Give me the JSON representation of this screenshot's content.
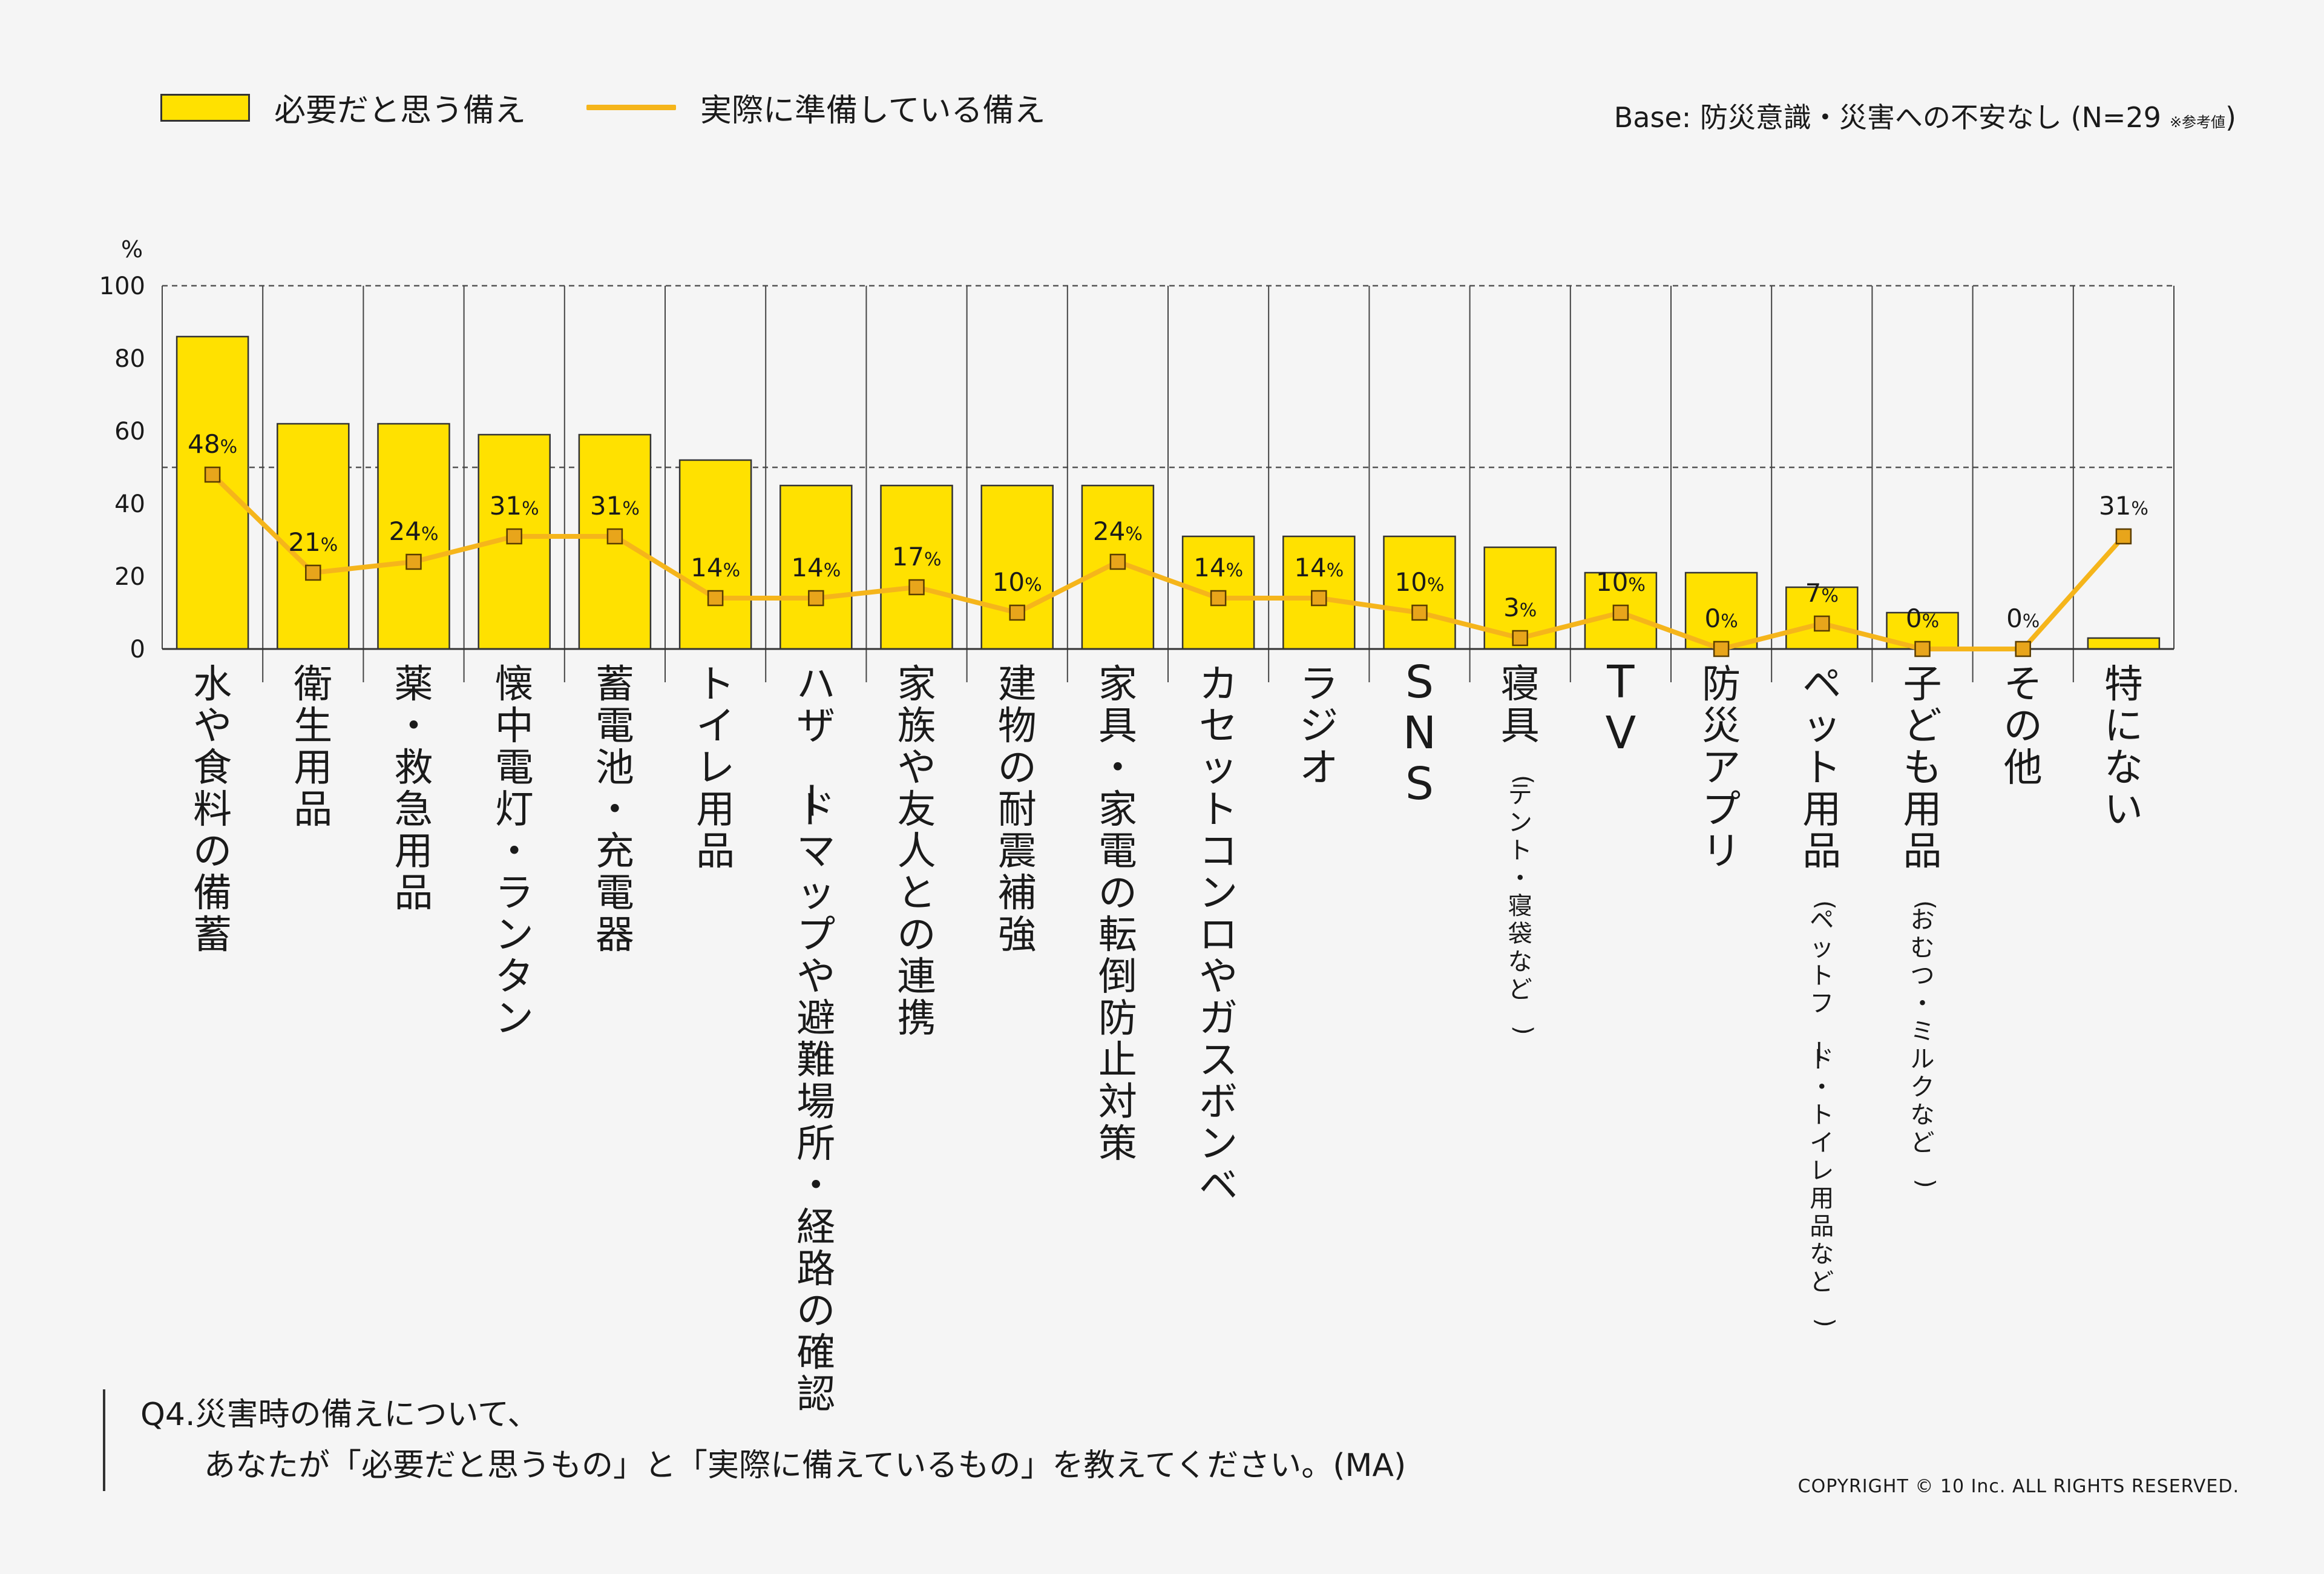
{
  "legend": {
    "bar_label": "必要だと思う備え",
    "line_label": "実際に準備している備え"
  },
  "base": {
    "text": "Base: 防災意識・災害への不安なし (N=29",
    "note": "※参考値",
    "close": ")"
  },
  "question": {
    "line1": "Q4.災害時の備えについて、",
    "line2": "あなたが「必要だと思うもの」と「実際に備えているもの」を教えてください。(MA)"
  },
  "copyright": "COPYRIGHT © 10 Inc. ALL RIGHTS RESERVED.",
  "colors": {
    "bar": "#ffe100",
    "bar_border": "#333333",
    "line": "#f5b51b",
    "marker": "#e8a51b",
    "grid": "#555555"
  },
  "chart_data": {
    "type": "bar",
    "yunit": "%",
    "ylim": [
      0,
      100
    ],
    "yticks": [
      0,
      20,
      40,
      60,
      80,
      100
    ],
    "reference_line": 50,
    "categories": [
      {
        "label": "水や食料の備蓄",
        "sub": ""
      },
      {
        "label": "衛生用品",
        "sub": ""
      },
      {
        "label": "薬・救急用品",
        "sub": ""
      },
      {
        "label": "懐中電灯・ランタン",
        "sub": ""
      },
      {
        "label": "蓄電池・充電器",
        "sub": ""
      },
      {
        "label": "トイレ用品",
        "sub": ""
      },
      {
        "label": "ハザードマップや避難場所・経路の確認",
        "sub": ""
      },
      {
        "label": "家族や友人との連携",
        "sub": ""
      },
      {
        "label": "建物の耐震補強",
        "sub": ""
      },
      {
        "label": "家具・家電の転倒防止対策",
        "sub": ""
      },
      {
        "label": "カセットコンロやガスボンベ",
        "sub": ""
      },
      {
        "label": "ラジオ",
        "sub": ""
      },
      {
        "label": "SNS",
        "sub": ""
      },
      {
        "label": "寝具",
        "sub": "(テント・寝袋など)"
      },
      {
        "label": "TV",
        "sub": ""
      },
      {
        "label": "防災アプリ",
        "sub": ""
      },
      {
        "label": "ペット用品",
        "sub": "(ペットフード・トイレ用品など)"
      },
      {
        "label": "子ども用品",
        "sub": "(おむつ・ミルクなど)"
      },
      {
        "label": "その他",
        "sub": ""
      },
      {
        "label": "特にない",
        "sub": ""
      }
    ],
    "series": [
      {
        "name": "必要だと思う備え",
        "type": "bar",
        "values": [
          86,
          62,
          62,
          59,
          59,
          52,
          45,
          45,
          45,
          45,
          31,
          31,
          31,
          28,
          21,
          21,
          17,
          10,
          0,
          3
        ]
      },
      {
        "name": "実際に準備している備え",
        "type": "line",
        "values": [
          48,
          21,
          24,
          31,
          31,
          14,
          14,
          17,
          10,
          24,
          14,
          14,
          10,
          3,
          10,
          0,
          7,
          0,
          0,
          31
        ],
        "labels": [
          "48%",
          "21%",
          "24%",
          "31%",
          "31%",
          "14%",
          "14%",
          "17%",
          "10%",
          "24%",
          "14%",
          "14%",
          "10%",
          "3%",
          "10%",
          "0%",
          "7%",
          "0%",
          "0%",
          "31%"
        ]
      }
    ]
  }
}
